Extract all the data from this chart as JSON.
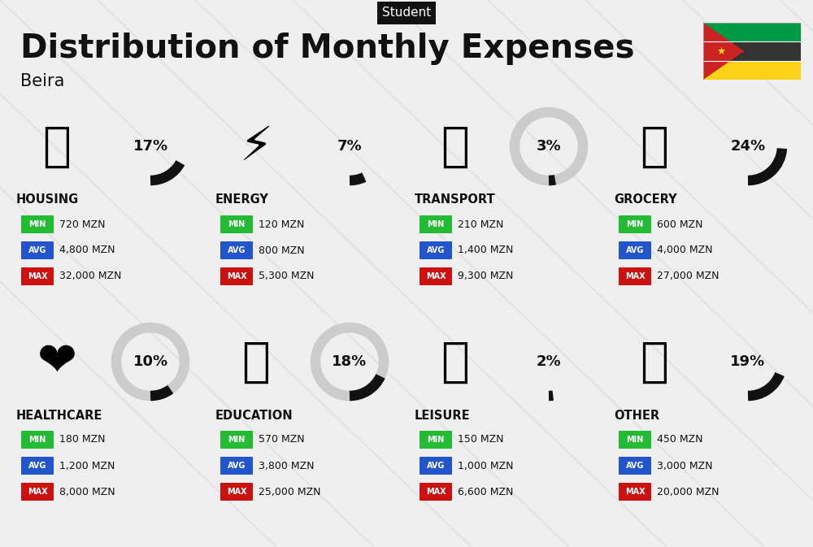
{
  "title": "Distribution of Monthly Expenses",
  "subtitle": "Student",
  "city": "Beira",
  "background_color": "#efefef",
  "categories": [
    {
      "name": "HOUSING",
      "percent": 17,
      "min": "720 MZN",
      "avg": "4,800 MZN",
      "max": "32,000 MZN",
      "emoji": "🏙",
      "col": 0,
      "row": 0
    },
    {
      "name": "ENERGY",
      "percent": 7,
      "min": "120 MZN",
      "avg": "800 MZN",
      "max": "5,300 MZN",
      "emoji": "⚡",
      "col": 1,
      "row": 0
    },
    {
      "name": "TRANSPORT",
      "percent": 3,
      "min": "210 MZN",
      "avg": "1,400 MZN",
      "max": "9,300 MZN",
      "emoji": "🚌",
      "col": 2,
      "row": 0
    },
    {
      "name": "GROCERY",
      "percent": 24,
      "min": "600 MZN",
      "avg": "4,000 MZN",
      "max": "27,000 MZN",
      "emoji": "🛒",
      "col": 3,
      "row": 0
    },
    {
      "name": "HEALTHCARE",
      "percent": 10,
      "min": "180 MZN",
      "avg": "1,200 MZN",
      "max": "8,000 MZN",
      "emoji": "❤",
      "col": 0,
      "row": 1
    },
    {
      "name": "EDUCATION",
      "percent": 18,
      "min": "570 MZN",
      "avg": "3,800 MZN",
      "max": "25,000 MZN",
      "emoji": "🎓",
      "col": 1,
      "row": 1
    },
    {
      "name": "LEISURE",
      "percent": 2,
      "min": "150 MZN",
      "avg": "1,000 MZN",
      "max": "6,600 MZN",
      "emoji": "🛍",
      "col": 2,
      "row": 1
    },
    {
      "name": "OTHER",
      "percent": 19,
      "min": "450 MZN",
      "avg": "3,000 MZN",
      "max": "20,000 MZN",
      "emoji": "👜",
      "col": 3,
      "row": 1
    }
  ],
  "color_min": "#22bb33",
  "color_avg": "#2255cc",
  "color_max": "#cc1111",
  "text_color": "#111111",
  "circle_color_filled": "#111111",
  "circle_color_empty": "#cccccc",
  "flag_stripes": [
    "#009a44",
    "#333333",
    "#fcd116"
  ],
  "flag_triangle": "#cc2222"
}
